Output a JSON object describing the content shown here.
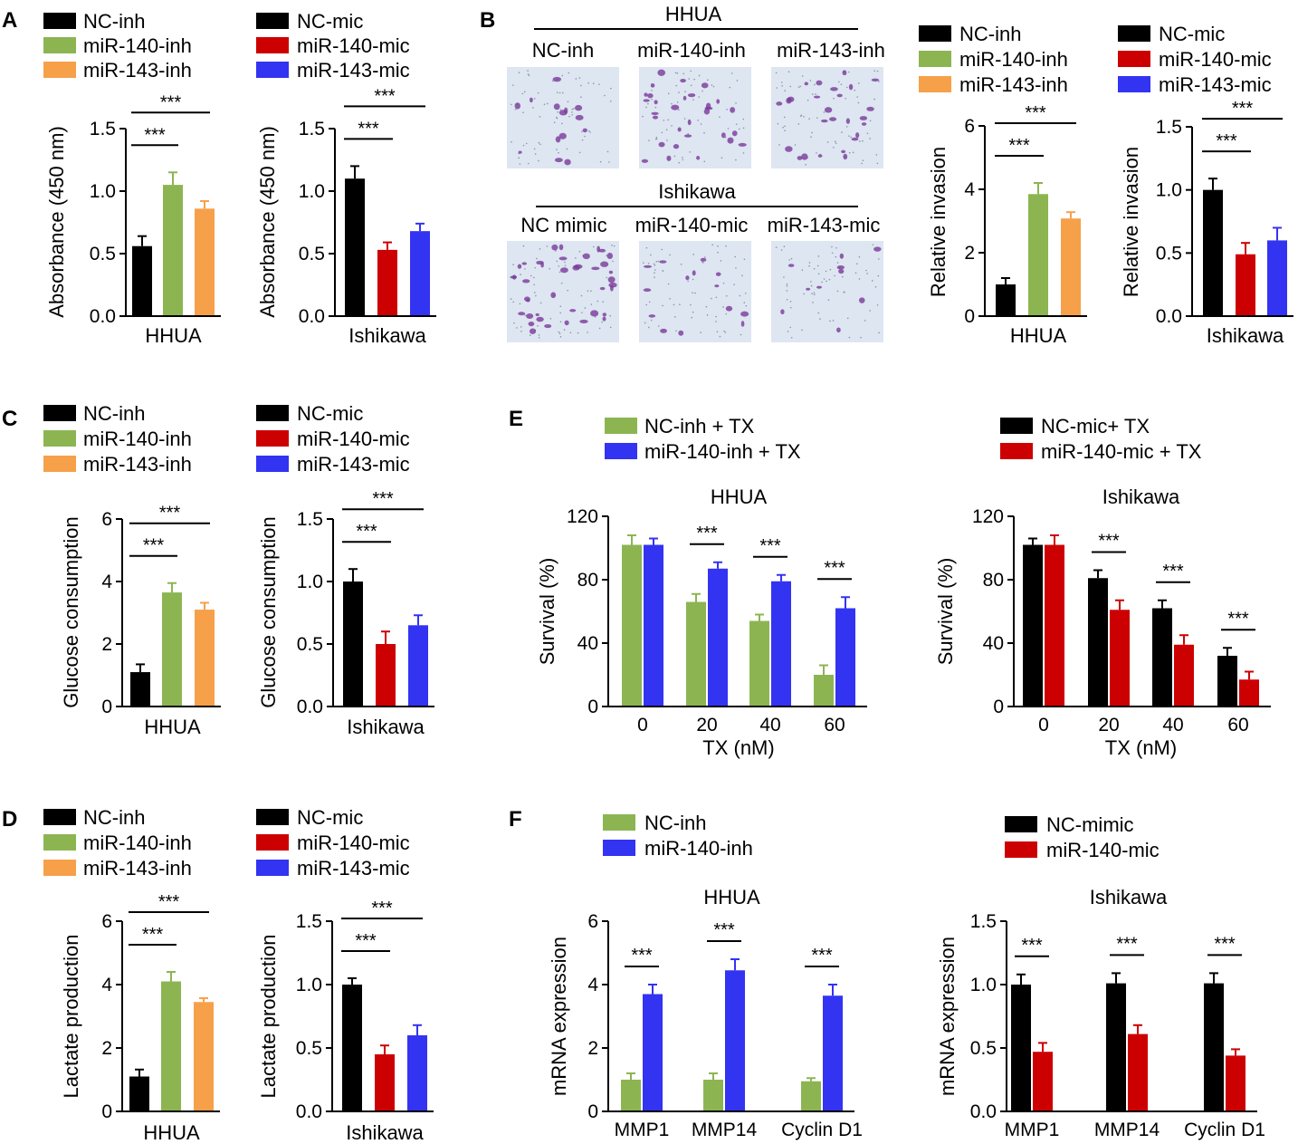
{
  "figure": {
    "background": "#ffffff"
  },
  "colors": {
    "black": "#000000",
    "green": "#8cb552",
    "orange": "#f7a04a",
    "red": "#cc0000",
    "blue": "#3333f2",
    "micrograph_bg": "#dde6f1",
    "stain": "#7a3a9a"
  },
  "panel_letters": [
    "A",
    "B",
    "C",
    "D",
    "E",
    "F"
  ],
  "legends": {
    "inh3": [
      "NC-inh",
      "miR-140-inh",
      "miR-143-inh"
    ],
    "mic3": [
      "NC-mic",
      "miR-140-mic",
      "miR-143-mic"
    ],
    "e_left": [
      "NC-inh + TX",
      "miR-140-inh + TX"
    ],
    "e_right": [
      "NC-mic+ TX",
      "miR-140-mic + TX"
    ],
    "f_left": [
      "NC-inh",
      "miR-140-inh"
    ],
    "f_right": [
      "NC-mimic",
      "miR-140-mic"
    ]
  },
  "panel_b_images": {
    "top_group": "HHUA",
    "top_labels": [
      "NC-inh",
      "miR-140-inh",
      "miR-143-inh"
    ],
    "bottom_group": "Ishikawa",
    "bottom_labels": [
      "NC mimic",
      "miR-140-mic",
      "miR-143-mic"
    ],
    "stain_density": [
      14,
      30,
      26,
      40,
      14,
      10
    ]
  },
  "sig_label": "***",
  "chart_data": [
    {
      "id": "A1",
      "type": "bar",
      "title": "",
      "ylabel": "Absorbance (450 nm)",
      "xlabel": "HHUA",
      "ylim": [
        0,
        1.5
      ],
      "yticks": [
        "0.0",
        "0.5",
        "1.0",
        "1.5"
      ],
      "categories": [
        "NC-inh",
        "miR-140-inh",
        "miR-143-inh"
      ],
      "values": [
        0.56,
        1.05,
        0.86
      ],
      "errors": [
        0.08,
        0.1,
        0.06
      ],
      "colors": [
        "#000000",
        "#8cb552",
        "#f7a04a"
      ],
      "significance": [
        {
          "from": 0,
          "to": 1,
          "label": "***"
        },
        {
          "from": 0,
          "to": 2,
          "label": "***"
        }
      ]
    },
    {
      "id": "A2",
      "type": "bar",
      "title": "",
      "ylabel": "Absorbance (450 nm)",
      "xlabel": "Ishikawa",
      "ylim": [
        0,
        1.5
      ],
      "yticks": [
        "0.0",
        "0.5",
        "1.0",
        "1.5"
      ],
      "categories": [
        "NC-mic",
        "miR-140-mic",
        "miR-143-mic"
      ],
      "values": [
        1.1,
        0.53,
        0.68
      ],
      "errors": [
        0.1,
        0.06,
        0.06
      ],
      "colors": [
        "#000000",
        "#cc0000",
        "#3333f2"
      ],
      "significance": [
        {
          "from": 0,
          "to": 1,
          "label": "***"
        },
        {
          "from": 0,
          "to": 2,
          "label": "***"
        }
      ]
    },
    {
      "id": "B1",
      "type": "bar",
      "title": "",
      "ylabel": "Relative invasion",
      "xlabel": "HHUA",
      "ylim": [
        0,
        6
      ],
      "yticks": [
        "0",
        "2",
        "4",
        "6"
      ],
      "categories": [
        "NC-inh",
        "miR-140-inh",
        "miR-143-inh"
      ],
      "values": [
        1.0,
        3.85,
        3.08
      ],
      "errors": [
        0.2,
        0.35,
        0.2
      ],
      "colors": [
        "#000000",
        "#8cb552",
        "#f7a04a"
      ],
      "significance": [
        {
          "from": 0,
          "to": 1,
          "label": "***"
        },
        {
          "from": 0,
          "to": 2,
          "label": "***"
        }
      ]
    },
    {
      "id": "B2",
      "type": "bar",
      "title": "",
      "ylabel": "Relative invasion",
      "xlabel": "Ishikawa",
      "ylim": [
        0,
        1.5
      ],
      "yticks": [
        "0.0",
        "0.5",
        "1.0",
        "1.5"
      ],
      "categories": [
        "NC-mic",
        "miR-140-mic",
        "miR-143-mic"
      ],
      "values": [
        1.0,
        0.49,
        0.6
      ],
      "errors": [
        0.09,
        0.09,
        0.1
      ],
      "colors": [
        "#000000",
        "#cc0000",
        "#3333f2"
      ],
      "significance": [
        {
          "from": 0,
          "to": 1,
          "label": "***"
        },
        {
          "from": 0,
          "to": 2,
          "label": "***"
        }
      ]
    },
    {
      "id": "C1",
      "type": "bar",
      "title": "",
      "ylabel": "Glucose consumption",
      "xlabel": "HHUA",
      "ylim": [
        0,
        6
      ],
      "yticks": [
        "0",
        "2",
        "4",
        "6"
      ],
      "categories": [
        "NC-inh",
        "miR-140-inh",
        "miR-143-inh"
      ],
      "values": [
        1.1,
        3.65,
        3.1
      ],
      "errors": [
        0.25,
        0.3,
        0.22
      ],
      "colors": [
        "#000000",
        "#8cb552",
        "#f7a04a"
      ],
      "significance": [
        {
          "from": 0,
          "to": 1,
          "label": "***"
        },
        {
          "from": 0,
          "to": 2,
          "label": "***"
        }
      ]
    },
    {
      "id": "C2",
      "type": "bar",
      "title": "",
      "ylabel": "Glucose consumption",
      "xlabel": "Ishikawa",
      "ylim": [
        0,
        1.5
      ],
      "yticks": [
        "0.0",
        "0.5",
        "1.0",
        "1.5"
      ],
      "categories": [
        "NC-mic",
        "miR-140-mic",
        "miR-143-mic"
      ],
      "values": [
        1.0,
        0.5,
        0.65
      ],
      "errors": [
        0.1,
        0.1,
        0.08
      ],
      "colors": [
        "#000000",
        "#cc0000",
        "#3333f2"
      ],
      "significance": [
        {
          "from": 0,
          "to": 1,
          "label": "***"
        },
        {
          "from": 0,
          "to": 2,
          "label": "***"
        }
      ]
    },
    {
      "id": "D1",
      "type": "bar",
      "title": "",
      "ylabel": "Lactate production",
      "xlabel": "HHUA",
      "ylim": [
        0,
        6
      ],
      "yticks": [
        "0",
        "2",
        "4",
        "6"
      ],
      "categories": [
        "NC-inh",
        "miR-140-inh",
        "miR-143-inh"
      ],
      "values": [
        1.1,
        4.1,
        3.45
      ],
      "errors": [
        0.22,
        0.3,
        0.12
      ],
      "colors": [
        "#000000",
        "#8cb552",
        "#f7a04a"
      ],
      "significance": [
        {
          "from": 0,
          "to": 1,
          "label": "***"
        },
        {
          "from": 0,
          "to": 2,
          "label": "***"
        }
      ]
    },
    {
      "id": "D2",
      "type": "bar",
      "title": "",
      "ylabel": "Lactate production",
      "xlabel": "Ishikawa",
      "ylim": [
        0,
        1.5
      ],
      "yticks": [
        "0.0",
        "0.5",
        "1.0",
        "1.5"
      ],
      "categories": [
        "NC-mic",
        "miR-140-mic",
        "miR-143-mic"
      ],
      "values": [
        1.0,
        0.45,
        0.6
      ],
      "errors": [
        0.05,
        0.07,
        0.08
      ],
      "colors": [
        "#000000",
        "#cc0000",
        "#3333f2"
      ],
      "significance": [
        {
          "from": 0,
          "to": 1,
          "label": "***"
        },
        {
          "from": 0,
          "to": 2,
          "label": "***"
        }
      ]
    },
    {
      "id": "E1",
      "type": "bar",
      "title": "HHUA",
      "ylabel": "Survival (%)",
      "xlabel": "TX (nM)",
      "ylim": [
        0,
        120
      ],
      "yticks": [
        "0",
        "40",
        "80",
        "120"
      ],
      "categories": [
        "0",
        "20",
        "40",
        "60"
      ],
      "series": [
        {
          "name": "NC-inh + TX",
          "color": "#8cb552",
          "values": [
            102,
            66,
            54,
            20
          ],
          "errors": [
            6,
            5,
            4,
            6
          ]
        },
        {
          "name": "miR-140-inh + TX",
          "color": "#3333f2",
          "values": [
            102,
            87,
            79,
            62
          ],
          "errors": [
            4,
            4,
            4,
            7
          ]
        }
      ],
      "significance": [
        1,
        2,
        3
      ],
      "sig_label": "***"
    },
    {
      "id": "E2",
      "type": "bar",
      "title": "Ishikawa",
      "ylabel": "Survival (%)",
      "xlabel": "TX (nM)",
      "ylim": [
        0,
        120
      ],
      "yticks": [
        "0",
        "40",
        "80",
        "120"
      ],
      "categories": [
        "0",
        "20",
        "40",
        "60"
      ],
      "series": [
        {
          "name": "NC-mic+ TX",
          "color": "#000000",
          "values": [
            102,
            81,
            62,
            32
          ],
          "errors": [
            4,
            5,
            5,
            5
          ]
        },
        {
          "name": "miR-140-mic + TX",
          "color": "#cc0000",
          "values": [
            102,
            61,
            39,
            17
          ],
          "errors": [
            6,
            6,
            6,
            5
          ]
        }
      ],
      "significance": [
        1,
        2,
        3
      ],
      "sig_label": "***"
    },
    {
      "id": "F1",
      "type": "bar",
      "title": "HHUA",
      "ylabel": "mRNA expression",
      "xlabel": "",
      "ylim": [
        0,
        6
      ],
      "yticks": [
        "0",
        "2",
        "4",
        "6"
      ],
      "categories": [
        "MMP1",
        "MMP14",
        "Cyclin D1"
      ],
      "series": [
        {
          "name": "NC-inh",
          "color": "#8cb552",
          "values": [
            1.0,
            1.0,
            0.95
          ],
          "errors": [
            0.2,
            0.2,
            0.1
          ]
        },
        {
          "name": "miR-140-inh",
          "color": "#3333f2",
          "values": [
            3.7,
            4.45,
            3.65
          ],
          "errors": [
            0.3,
            0.35,
            0.35
          ]
        }
      ],
      "significance": [
        0,
        1,
        2
      ],
      "sig_label": "***"
    },
    {
      "id": "F2",
      "type": "bar",
      "title": "Ishikawa",
      "ylabel": "mRNA expression",
      "xlabel": "",
      "ylim": [
        0,
        1.5
      ],
      "yticks": [
        "0.0",
        "0.5",
        "1.0",
        "1.5"
      ],
      "categories": [
        "MMP1",
        "MMP14",
        "Cyclin D1"
      ],
      "series": [
        {
          "name": "NC-mimic",
          "color": "#000000",
          "values": [
            1.0,
            1.01,
            1.01
          ],
          "errors": [
            0.08,
            0.08,
            0.08
          ]
        },
        {
          "name": "miR-140-mic",
          "color": "#cc0000",
          "values": [
            0.47,
            0.61,
            0.44
          ],
          "errors": [
            0.07,
            0.07,
            0.05
          ]
        }
      ],
      "significance": [
        0,
        1,
        2
      ],
      "sig_label": "***"
    }
  ]
}
